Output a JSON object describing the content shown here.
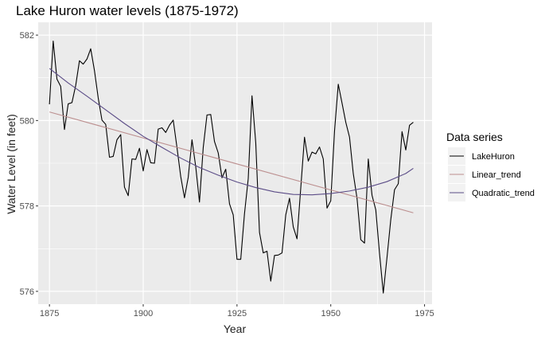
{
  "chart_data": {
    "type": "line",
    "title": "Lake Huron water levels (1875-1972)",
    "xlabel": "Year",
    "ylabel": "Water Level (in feet)",
    "xlim": [
      1872,
      1977
    ],
    "ylim": [
      575.7,
      582.3
    ],
    "xticks": [
      1875,
      1900,
      1925,
      1950,
      1975
    ],
    "yticks": [
      576,
      578,
      580,
      582
    ],
    "grid": true,
    "legend": {
      "title": "Data series",
      "position": "right"
    },
    "series": [
      {
        "name": "LakeHuron",
        "color": "#000000",
        "x": [
          1875,
          1876,
          1877,
          1878,
          1879,
          1880,
          1881,
          1882,
          1883,
          1884,
          1885,
          1886,
          1887,
          1888,
          1889,
          1890,
          1891,
          1892,
          1893,
          1894,
          1895,
          1896,
          1897,
          1898,
          1899,
          1900,
          1901,
          1902,
          1903,
          1904,
          1905,
          1906,
          1907,
          1908,
          1909,
          1910,
          1911,
          1912,
          1913,
          1914,
          1915,
          1916,
          1917,
          1918,
          1919,
          1920,
          1921,
          1922,
          1923,
          1924,
          1925,
          1926,
          1927,
          1928,
          1929,
          1930,
          1931,
          1932,
          1933,
          1934,
          1935,
          1936,
          1937,
          1938,
          1939,
          1940,
          1941,
          1942,
          1943,
          1944,
          1945,
          1946,
          1947,
          1948,
          1949,
          1950,
          1951,
          1952,
          1953,
          1954,
          1955,
          1956,
          1957,
          1958,
          1959,
          1960,
          1961,
          1962,
          1963,
          1964,
          1965,
          1966,
          1967,
          1968,
          1969,
          1970,
          1971,
          1972
        ],
        "y": [
          580.38,
          581.86,
          580.97,
          580.8,
          579.79,
          580.39,
          580.42,
          580.82,
          581.4,
          581.32,
          581.44,
          581.68,
          581.17,
          580.53,
          580.01,
          579.91,
          579.14,
          579.16,
          579.55,
          579.67,
          578.44,
          578.24,
          579.1,
          579.09,
          579.35,
          578.82,
          579.32,
          579.01,
          579.0,
          579.8,
          579.83,
          579.72,
          579.89,
          580.01,
          579.37,
          578.69,
          578.19,
          578.67,
          579.55,
          578.92,
          578.09,
          579.37,
          580.13,
          580.14,
          579.51,
          579.24,
          578.66,
          578.86,
          578.05,
          577.79,
          576.75,
          576.75,
          577.82,
          578.64,
          580.58,
          579.48,
          577.38,
          576.9,
          576.94,
          576.24,
          576.84,
          576.85,
          576.9,
          577.79,
          578.18,
          577.51,
          577.23,
          578.42,
          579.61,
          579.05,
          579.26,
          579.22,
          579.38,
          579.1,
          577.95,
          578.12,
          579.75,
          580.85,
          580.41,
          579.96,
          579.61,
          578.76,
          578.18,
          577.21,
          577.13,
          579.1,
          578.25,
          577.91,
          576.89,
          575.96,
          576.8,
          577.68,
          578.38,
          578.52,
          579.74,
          579.31,
          579.89,
          579.96
        ]
      },
      {
        "name": "Linear_trend",
        "color": "#bc8f8f",
        "x": [
          1875,
          1972
        ],
        "y": [
          580.2,
          577.84
        ]
      },
      {
        "name": "Quadratic_trend",
        "color": "#5b4c87",
        "x": [
          1875,
          1880,
          1885,
          1890,
          1895,
          1900,
          1905,
          1910,
          1915,
          1920,
          1925,
          1930,
          1935,
          1940,
          1945,
          1950,
          1955,
          1960,
          1965,
          1970,
          1972
        ],
        "y": [
          581.22,
          580.88,
          580.57,
          580.25,
          579.93,
          579.63,
          579.37,
          579.12,
          578.9,
          578.72,
          578.56,
          578.43,
          578.33,
          578.27,
          578.26,
          578.29,
          578.35,
          578.44,
          578.57,
          578.76,
          578.88
        ]
      }
    ]
  }
}
